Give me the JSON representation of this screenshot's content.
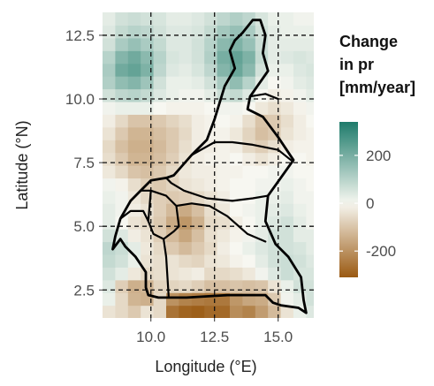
{
  "chart_data": {
    "type": "heatmap",
    "title": "",
    "xlabel": "Longitude (°E)",
    "ylabel": "Latitude (°N)",
    "xlim": [
      8.1,
      16.4
    ],
    "ylim": [
      1.4,
      13.4
    ],
    "x_ticks": [
      {
        "value": 10.0,
        "label": "10.0"
      },
      {
        "value": 12.5,
        "label": "12.5"
      },
      {
        "value": 15.0,
        "label": "15.0"
      }
    ],
    "y_ticks": [
      {
        "value": 2.5,
        "label": "2.5"
      },
      {
        "value": 5.0,
        "label": "5.0"
      },
      {
        "value": 7.5,
        "label": "7.5"
      },
      {
        "value": 10.0,
        "label": "10.0"
      },
      {
        "value": 12.5,
        "label": "12.5"
      }
    ],
    "grid": "dashed major gridlines at tick values",
    "legend": {
      "title_lines": [
        "Change",
        "in pr",
        "[mm/year]"
      ],
      "placement": "right",
      "ticks": [
        {
          "value": 200,
          "label": "200"
        },
        {
          "value": 0,
          "label": "0"
        },
        {
          "value": -200,
          "label": "-200"
        }
      ],
      "range": [
        -310,
        340
      ],
      "colors": {
        "low": "#9a5a12",
        "mid": "#f7f7f1",
        "high": "#1e7b6b"
      }
    },
    "grid_cell_size_deg": 0.5,
    "grid_x_start": 8.1,
    "grid_y_start": 1.4,
    "grid_values": [
      [
        -40,
        -60,
        -90,
        -40,
        -60,
        -260,
        -290,
        -300,
        -280,
        -280,
        -210,
        -230,
        -180,
        -120,
        -40,
        20,
        40
      ],
      [
        20,
        -60,
        -130,
        -140,
        -60,
        -200,
        -230,
        -240,
        -250,
        -250,
        -190,
        -160,
        -150,
        -90,
        10,
        30,
        60
      ],
      [
        40,
        -80,
        -140,
        -130,
        -70,
        -70,
        -60,
        -80,
        -110,
        -110,
        -100,
        -110,
        -100,
        -40,
        20,
        60,
        60
      ],
      [
        60,
        30,
        -30,
        -60,
        -50,
        -40,
        -30,
        -20,
        -60,
        -60,
        -50,
        -30,
        10,
        40,
        70,
        50,
        50
      ],
      [
        80,
        60,
        20,
        -40,
        -50,
        -40,
        -60,
        -70,
        -40,
        -30,
        -10,
        0,
        30,
        60,
        70,
        60,
        40
      ],
      [
        90,
        70,
        30,
        -30,
        -60,
        -90,
        -120,
        -90,
        -60,
        -20,
        0,
        20,
        40,
        60,
        60,
        50,
        30
      ],
      [
        60,
        40,
        -20,
        -40,
        -80,
        -120,
        -160,
        -110,
        -50,
        -30,
        -10,
        10,
        30,
        60,
        60,
        30,
        30
      ],
      [
        30,
        0,
        -40,
        -60,
        -90,
        -150,
        -190,
        -140,
        -60,
        -50,
        -20,
        0,
        20,
        40,
        60,
        30,
        10
      ],
      [
        30,
        10,
        -20,
        -40,
        -80,
        -120,
        -150,
        -110,
        -50,
        -30,
        0,
        10,
        20,
        30,
        40,
        20,
        10
      ],
      [
        20,
        10,
        -30,
        -60,
        -80,
        -90,
        -80,
        -60,
        -40,
        -20,
        0,
        0,
        20,
        20,
        30,
        10,
        10
      ],
      [
        10,
        -10,
        -50,
        -80,
        -90,
        -70,
        -40,
        -30,
        -20,
        -10,
        0,
        0,
        10,
        10,
        20,
        10,
        0
      ],
      [
        -30,
        -60,
        -100,
        -110,
        -90,
        -60,
        -30,
        -20,
        -20,
        -10,
        -10,
        0,
        0,
        10,
        10,
        0,
        0
      ],
      [
        -50,
        -90,
        -130,
        -130,
        -110,
        -80,
        -40,
        -20,
        -10,
        -10,
        0,
        -20,
        -40,
        -20,
        0,
        0,
        -10
      ],
      [
        -60,
        -110,
        -140,
        -140,
        -120,
        -90,
        -50,
        -20,
        -20,
        -10,
        -20,
        -60,
        -80,
        -50,
        -20,
        -10,
        -10
      ],
      [
        -40,
        -90,
        -130,
        -130,
        -110,
        -90,
        -60,
        -20,
        -10,
        -10,
        -30,
        -70,
        -110,
        -90,
        -40,
        -20,
        -10
      ],
      [
        -20,
        -60,
        -100,
        -100,
        -90,
        -70,
        -50,
        -20,
        -10,
        0,
        -10,
        -50,
        -100,
        -90,
        -50,
        -20,
        0
      ],
      [
        10,
        20,
        20,
        20,
        0,
        -10,
        -10,
        -10,
        0,
        10,
        10,
        0,
        -30,
        -50,
        -30,
        -10,
        10
      ],
      [
        60,
        90,
        100,
        80,
        40,
        20,
        10,
        10,
        30,
        70,
        80,
        40,
        0,
        -20,
        -10,
        10,
        30
      ],
      [
        110,
        160,
        180,
        140,
        60,
        20,
        20,
        30,
        60,
        120,
        160,
        100,
        30,
        0,
        10,
        30,
        40
      ],
      [
        120,
        210,
        230,
        190,
        90,
        40,
        30,
        50,
        90,
        180,
        220,
        170,
        60,
        20,
        20,
        40,
        50
      ],
      [
        100,
        180,
        210,
        170,
        100,
        50,
        40,
        60,
        110,
        200,
        230,
        190,
        80,
        30,
        40,
        50,
        40
      ],
      [
        60,
        120,
        150,
        120,
        80,
        40,
        40,
        60,
        100,
        170,
        190,
        150,
        70,
        30,
        30,
        30,
        30
      ],
      [
        40,
        80,
        100,
        90,
        60,
        40,
        40,
        50,
        80,
        130,
        150,
        120,
        60,
        30,
        20,
        20,
        20
      ],
      [
        30,
        60,
        70,
        60,
        50,
        30,
        30,
        40,
        60,
        90,
        110,
        90,
        50,
        20,
        20,
        10,
        10
      ]
    ],
    "boundaries": [
      {
        "name": "country",
        "points": [
          [
            8.5,
            4.1
          ],
          [
            8.8,
            4.5
          ],
          [
            9.0,
            4.2
          ],
          [
            9.4,
            3.8
          ],
          [
            9.8,
            3.2
          ],
          [
            9.8,
            2.6
          ],
          [
            9.9,
            2.3
          ],
          [
            10.3,
            2.2
          ],
          [
            11.4,
            2.2
          ],
          [
            13.0,
            2.3
          ],
          [
            14.5,
            2.3
          ],
          [
            14.8,
            2.0
          ],
          [
            15.1,
            1.9
          ],
          [
            15.8,
            1.8
          ],
          [
            16.1,
            1.6
          ],
          [
            16.0,
            2.1
          ],
          [
            15.9,
            3.0
          ],
          [
            15.4,
            3.8
          ],
          [
            14.9,
            4.3
          ],
          [
            14.5,
            5.2
          ],
          [
            14.6,
            6.2
          ],
          [
            15.1,
            6.9
          ],
          [
            15.6,
            7.6
          ],
          [
            15.0,
            8.5
          ],
          [
            14.4,
            9.3
          ],
          [
            13.8,
            9.6
          ],
          [
            13.9,
            10.1
          ],
          [
            14.6,
            11.1
          ],
          [
            14.4,
            11.8
          ],
          [
            14.5,
            12.5
          ],
          [
            14.3,
            13.1
          ],
          [
            14.0,
            13.1
          ],
          [
            13.6,
            12.6
          ],
          [
            13.3,
            12.3
          ],
          [
            13.1,
            11.9
          ],
          [
            13.3,
            11.2
          ],
          [
            12.9,
            10.5
          ],
          [
            12.5,
            9.2
          ],
          [
            12.2,
            8.4
          ],
          [
            11.6,
            7.8
          ],
          [
            10.9,
            7.0
          ],
          [
            10.6,
            6.9
          ],
          [
            10.0,
            6.8
          ],
          [
            9.6,
            6.4
          ],
          [
            9.2,
            6.0
          ],
          [
            8.8,
            5.3
          ],
          [
            8.6,
            4.6
          ],
          [
            8.5,
            4.1
          ]
        ]
      },
      {
        "name": "west-region",
        "points": [
          [
            10.0,
            6.4
          ],
          [
            10.6,
            6.2
          ],
          [
            11.0,
            5.8
          ],
          [
            11.1,
            5.0
          ],
          [
            10.9,
            4.8
          ],
          [
            10.5,
            4.5
          ],
          [
            10.1,
            4.7
          ],
          [
            9.9,
            5.2
          ],
          [
            10.0,
            6.4
          ]
        ]
      },
      {
        "name": "littoral-east",
        "points": [
          [
            10.5,
            4.5
          ],
          [
            10.6,
            3.8
          ],
          [
            10.7,
            2.2
          ]
        ]
      },
      {
        "name": "centre-south",
        "points": [
          [
            11.0,
            5.8
          ],
          [
            11.6,
            5.9
          ],
          [
            12.3,
            5.8
          ],
          [
            13.0,
            5.4
          ],
          [
            13.8,
            4.7
          ],
          [
            14.5,
            4.4
          ]
        ]
      },
      {
        "name": "northwest-centre",
        "points": [
          [
            9.6,
            6.4
          ],
          [
            10.0,
            6.4
          ]
        ]
      },
      {
        "name": "adamawa-south",
        "points": [
          [
            10.6,
            6.9
          ],
          [
            10.8,
            6.7
          ],
          [
            11.3,
            6.4
          ],
          [
            12.2,
            6.1
          ],
          [
            13.2,
            6.0
          ],
          [
            14.0,
            6.1
          ],
          [
            14.6,
            6.2
          ]
        ]
      },
      {
        "name": "north-adamawa",
        "points": [
          [
            11.6,
            7.8
          ],
          [
            12.5,
            8.3
          ],
          [
            13.2,
            8.3
          ],
          [
            14.0,
            8.2
          ],
          [
            15.0,
            8.0
          ],
          [
            15.5,
            7.6
          ]
        ]
      },
      {
        "name": "far-north",
        "points": [
          [
            13.9,
            10.1
          ],
          [
            14.5,
            10.2
          ],
          [
            15.0,
            10.0
          ]
        ]
      },
      {
        "name": "west-coast",
        "points": [
          [
            8.8,
            5.3
          ],
          [
            9.2,
            5.6
          ],
          [
            9.7,
            5.6
          ],
          [
            9.9,
            5.2
          ]
        ]
      }
    ]
  }
}
